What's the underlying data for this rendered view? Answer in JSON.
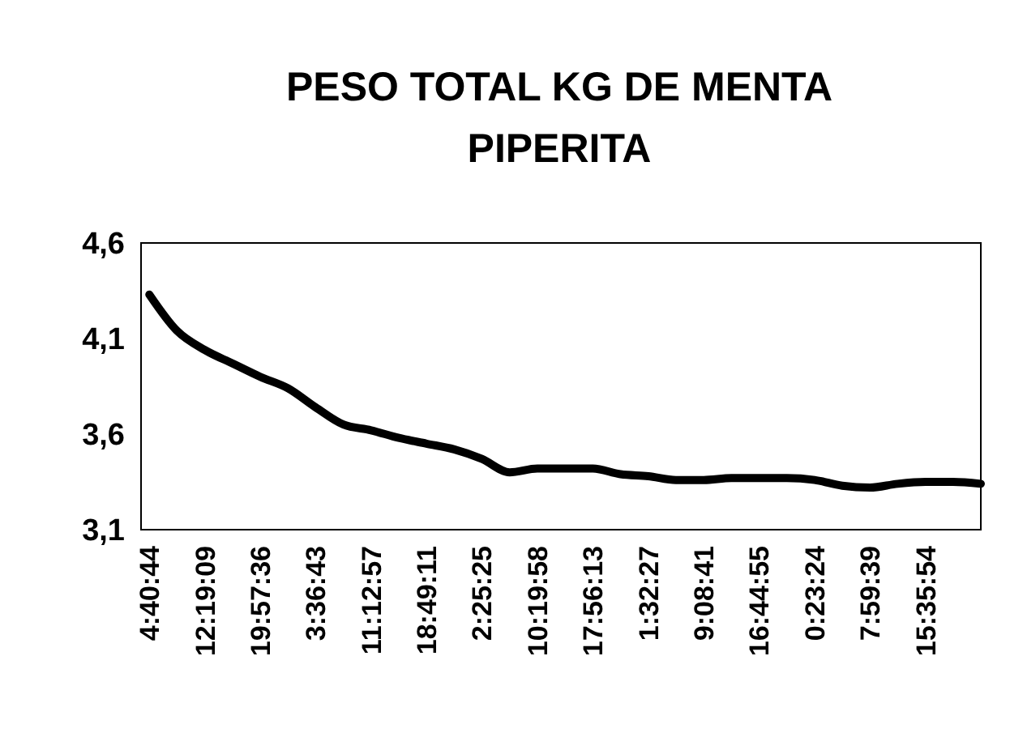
{
  "chart_data": {
    "type": "line",
    "title": "PESO TOTAL KG DE MENTA PIPERITA",
    "categories": [
      "4:40:44",
      null,
      "12:19:09",
      null,
      "19:57:36",
      null,
      "3:36:43",
      null,
      "11:12:57",
      null,
      "18:49:11",
      null,
      "2:25:25",
      null,
      "10:19:58",
      null,
      "17:56:13",
      null,
      "1:32:27",
      null,
      "9:08:41",
      null,
      "16:44:55",
      null,
      "0:23:24",
      null,
      "7:59:39",
      null,
      "15:35:54",
      null,
      null
    ],
    "series": [
      {
        "color": "#000000",
        "values": [
          4.33,
          4.14,
          4.04,
          3.97,
          3.9,
          3.84,
          3.74,
          3.65,
          3.62,
          3.58,
          3.55,
          3.52,
          3.47,
          3.4,
          3.42,
          3.42,
          3.42,
          3.39,
          3.38,
          3.36,
          3.36,
          3.37,
          3.37,
          3.37,
          3.36,
          3.33,
          3.32,
          3.34,
          3.35,
          3.35,
          3.34
        ]
      }
    ],
    "ylim": [
      3.1,
      4.6
    ],
    "yticks": [
      {
        "value": 3.1,
        "label": "3,1"
      },
      {
        "value": 3.6,
        "label": "3,6"
      },
      {
        "value": 4.1,
        "label": "4,1"
      },
      {
        "value": 4.6,
        "label": "4,6"
      }
    ],
    "grid": false,
    "marker": "none",
    "line_style": "solid"
  }
}
